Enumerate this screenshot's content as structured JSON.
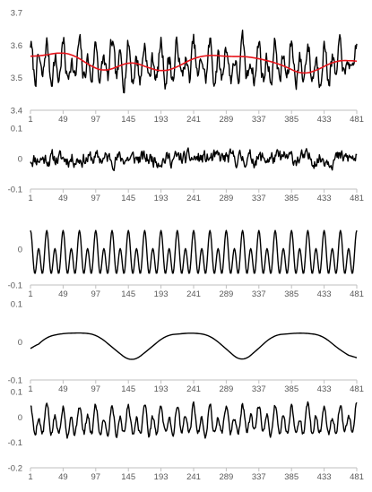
{
  "chart_data": [
    {
      "type": "line",
      "x_ticks": [
        "1",
        "49",
        "97",
        "145",
        "193",
        "241",
        "289",
        "337",
        "385",
        "433",
        "481"
      ],
      "y_ticks": [
        "3.4",
        "3.5",
        "3.6",
        "3.7"
      ],
      "ylim": [
        3.4,
        3.7
      ],
      "xlim": [
        1,
        481
      ],
      "grid": false,
      "series": [
        {
          "role": "data",
          "color": "#000000",
          "mean": 3.54,
          "amplitude": 0.065,
          "noise": 0.025,
          "period": 24,
          "seed": 7
        },
        {
          "role": "trend",
          "color": "#e8141b",
          "points": [
            [
              1,
              3.565
            ],
            [
              20,
              3.568
            ],
            [
              45,
              3.578
            ],
            [
              65,
              3.57
            ],
            [
              90,
              3.535
            ],
            [
              110,
              3.518
            ],
            [
              130,
              3.535
            ],
            [
              150,
              3.55
            ],
            [
              175,
              3.53
            ],
            [
              195,
              3.518
            ],
            [
              215,
              3.53
            ],
            [
              240,
              3.56
            ],
            [
              265,
              3.57
            ],
            [
              290,
              3.565
            ],
            [
              320,
              3.565
            ],
            [
              345,
              3.555
            ],
            [
              370,
              3.54
            ],
            [
              400,
              3.51
            ],
            [
              420,
              3.52
            ],
            [
              445,
              3.548
            ],
            [
              465,
              3.555
            ],
            [
              481,
              3.548
            ]
          ]
        }
      ]
    },
    {
      "type": "line",
      "x_ticks": [
        "1",
        "49",
        "97",
        "145",
        "193",
        "241",
        "289",
        "337",
        "385",
        "433",
        "481"
      ],
      "y_ticks": [
        "-0.1",
        "0",
        "0.1"
      ],
      "ylim": [
        -0.1,
        0.1
      ],
      "xlim": [
        1,
        481
      ],
      "grid": false,
      "series": [
        {
          "role": "data",
          "color": "#000000",
          "mean": 0.0,
          "amplitude": 0.0,
          "noise": 0.02,
          "period": 24,
          "seed": 11
        }
      ]
    },
    {
      "type": "line",
      "x_ticks": [
        "1",
        "49",
        "97",
        "145",
        "193",
        "241",
        "289",
        "337",
        "385",
        "433",
        "481"
      ],
      "y_ticks": [
        "-0.1",
        "0"
      ],
      "ylim": [
        -0.1,
        0.07
      ],
      "xlim": [
        1,
        481
      ],
      "grid": false,
      "series": [
        {
          "role": "data",
          "color": "#000000",
          "mean": -0.02,
          "amplitude": 0.072,
          "noise": 0.0,
          "period": 24,
          "seed": 3
        }
      ]
    },
    {
      "type": "line",
      "x_ticks": [
        "1",
        "49",
        "97",
        "145",
        "193",
        "241",
        "289",
        "337",
        "385",
        "433",
        "481"
      ],
      "y_ticks": [
        "-0.1",
        "0",
        "0.1"
      ],
      "ylim": [
        -0.1,
        0.1
      ],
      "xlim": [
        1,
        481
      ],
      "grid": false,
      "series": [
        {
          "role": "data",
          "color": "#000000",
          "points": [
            [
              1,
              -0.03
            ],
            [
              20,
              0.01
            ],
            [
              45,
              0.022
            ],
            [
              80,
              0.024
            ],
            [
              100,
              0.018
            ],
            [
              125,
              -0.02
            ],
            [
              150,
              -0.055
            ],
            [
              175,
              -0.02
            ],
            [
              200,
              0.018
            ],
            [
              240,
              0.024
            ],
            [
              265,
              0.018
            ],
            [
              290,
              -0.02
            ],
            [
              312,
              -0.055
            ],
            [
              335,
              -0.02
            ],
            [
              358,
              0.018
            ],
            [
              400,
              0.024
            ],
            [
              430,
              0.018
            ],
            [
              455,
              -0.02
            ],
            [
              481,
              -0.048
            ]
          ]
        }
      ]
    },
    {
      "type": "line",
      "x_ticks": [
        "1",
        "49",
        "97",
        "145",
        "193",
        "241",
        "289",
        "337",
        "385",
        "433",
        "481"
      ],
      "y_ticks": [
        "-0.2",
        "-0.1",
        "0",
        "0.1"
      ],
      "ylim": [
        -0.2,
        0.1
      ],
      "xlim": [
        1,
        481
      ],
      "grid": false,
      "series": [
        {
          "role": "data",
          "color": "#000000",
          "mean": -0.02,
          "amplitude": 0.068,
          "noise": 0.012,
          "period": 24,
          "seed": 5
        }
      ]
    }
  ]
}
